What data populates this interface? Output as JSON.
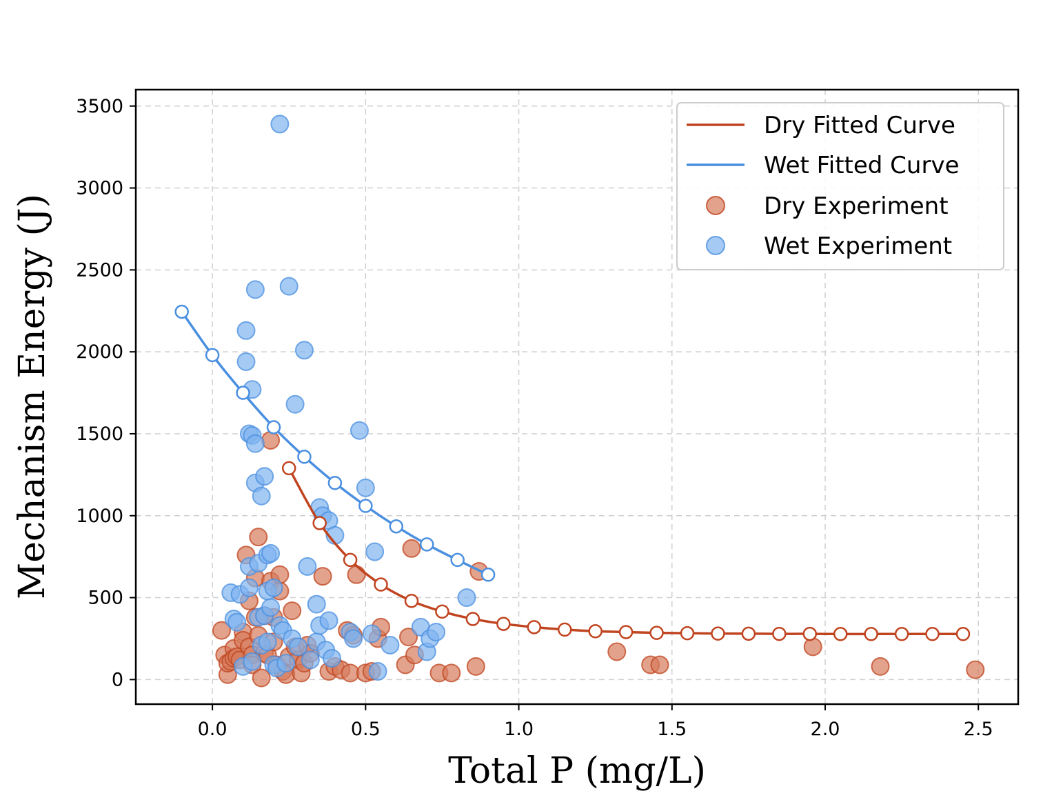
{
  "chart_data": {
    "type": "scatter",
    "title": "",
    "xlabel": "Total P (mg/L)",
    "ylabel": "Mechanism Energy (J)",
    "xlim": [
      -0.25,
      2.63
    ],
    "ylim": [
      -150,
      3600
    ],
    "x_ticks": [
      0.0,
      0.5,
      1.0,
      1.5,
      2.0,
      2.5
    ],
    "x_tick_labels": [
      "0.0",
      "0.5",
      "1.0",
      "1.5",
      "2.0",
      "2.5"
    ],
    "y_ticks": [
      0,
      500,
      1000,
      1500,
      2000,
      2500,
      3000,
      3500
    ],
    "y_tick_labels": [
      "0",
      "500",
      "1000",
      "1500",
      "2000",
      "2500",
      "3000",
      "3500"
    ],
    "grid": true,
    "legend_position": "top-right",
    "legend": [
      "Dry Fitted Curve",
      "Wet Fitted Curve",
      "Dry Experiment",
      "Wet Experiment"
    ],
    "colors": {
      "dry": "#c0441f",
      "wet": "#4a8fe0",
      "dry_marker_fill": "#d67b5b",
      "wet_marker_fill": "#7fb3f0"
    },
    "series": [
      {
        "name": "Dry Fitted Curve",
        "kind": "line",
        "color": "#c0441f",
        "x": [
          0.25,
          0.35,
          0.45,
          0.55,
          0.65,
          0.75,
          0.85,
          0.95,
          1.05,
          1.15,
          1.25,
          1.35,
          1.45,
          1.55,
          1.65,
          1.75,
          1.85,
          1.95,
          2.05,
          2.15,
          2.25,
          2.35,
          2.45
        ],
        "y": [
          1290,
          955,
          730,
          580,
          480,
          415,
          370,
          340,
          320,
          305,
          295,
          290,
          285,
          283,
          281,
          280,
          279,
          279,
          278,
          278,
          278,
          278,
          278
        ]
      },
      {
        "name": "Wet Fitted Curve",
        "kind": "line",
        "color": "#4a8fe0",
        "x": [
          -0.1,
          0.0,
          0.1,
          0.2,
          0.3,
          0.4,
          0.5,
          0.6,
          0.7,
          0.8,
          0.9
        ],
        "y": [
          2245,
          1980,
          1750,
          1540,
          1360,
          1200,
          1060,
          935,
          825,
          730,
          640
        ]
      },
      {
        "name": "Dry Experiment",
        "kind": "scatter",
        "color": "#d67b5b",
        "x": [
          0.03,
          0.04,
          0.05,
          0.05,
          0.06,
          0.07,
          0.07,
          0.08,
          0.09,
          0.1,
          0.1,
          0.11,
          0.12,
          0.12,
          0.13,
          0.13,
          0.14,
          0.14,
          0.15,
          0.15,
          0.16,
          0.17,
          0.17,
          0.18,
          0.19,
          0.19,
          0.2,
          0.2,
          0.21,
          0.22,
          0.22,
          0.23,
          0.24,
          0.25,
          0.26,
          0.27,
          0.28,
          0.29,
          0.3,
          0.31,
          0.32,
          0.36,
          0.38,
          0.4,
          0.42,
          0.44,
          0.45,
          0.46,
          0.47,
          0.5,
          0.52,
          0.54,
          0.55,
          0.63,
          0.64,
          0.65,
          0.66,
          0.74,
          0.78,
          0.86,
          0.87,
          1.32,
          1.43,
          1.46,
          1.96,
          2.18,
          2.49
        ],
        "y": [
          300,
          150,
          30,
          100,
          110,
          190,
          130,
          140,
          120,
          290,
          240,
          760,
          200,
          480,
          150,
          90,
          380,
          620,
          870,
          270,
          10,
          160,
          390,
          150,
          600,
          1460,
          230,
          380,
          90,
          540,
          640,
          50,
          30,
          140,
          420,
          200,
          120,
          40,
          100,
          210,
          160,
          630,
          50,
          80,
          60,
          300,
          40,
          270,
          640,
          40,
          50,
          250,
          320,
          90,
          260,
          800,
          150,
          40,
          40,
          80,
          660,
          170,
          90,
          90,
          200,
          80,
          60
        ]
      },
      {
        "name": "Wet Experiment",
        "kind": "scatter",
        "color": "#7fb3f0",
        "x": [
          0.06,
          0.07,
          0.08,
          0.09,
          0.1,
          0.11,
          0.11,
          0.12,
          0.12,
          0.12,
          0.13,
          0.13,
          0.13,
          0.14,
          0.14,
          0.14,
          0.15,
          0.15,
          0.16,
          0.16,
          0.17,
          0.17,
          0.18,
          0.18,
          0.18,
          0.19,
          0.19,
          0.2,
          0.2,
          0.21,
          0.22,
          0.22,
          0.23,
          0.24,
          0.25,
          0.26,
          0.27,
          0.28,
          0.3,
          0.31,
          0.32,
          0.34,
          0.34,
          0.35,
          0.35,
          0.36,
          0.37,
          0.38,
          0.38,
          0.39,
          0.4,
          0.45,
          0.46,
          0.48,
          0.5,
          0.52,
          0.53,
          0.54,
          0.58,
          0.68,
          0.7,
          0.71,
          0.73,
          0.83
        ],
        "y": [
          530,
          370,
          350,
          520,
          80,
          2130,
          1940,
          690,
          1500,
          560,
          110,
          1770,
          1490,
          1440,
          2380,
          1200,
          710,
          380,
          1120,
          210,
          390,
          1240,
          230,
          760,
          540,
          770,
          440,
          560,
          90,
          70,
          3390,
          330,
          300,
          100,
          2400,
          250,
          1680,
          200,
          2010,
          690,
          120,
          460,
          230,
          1050,
          330,
          1000,
          180,
          970,
          360,
          130,
          880,
          290,
          250,
          1520,
          1170,
          280,
          780,
          50,
          210,
          320,
          170,
          250,
          290,
          500
        ]
      }
    ]
  }
}
